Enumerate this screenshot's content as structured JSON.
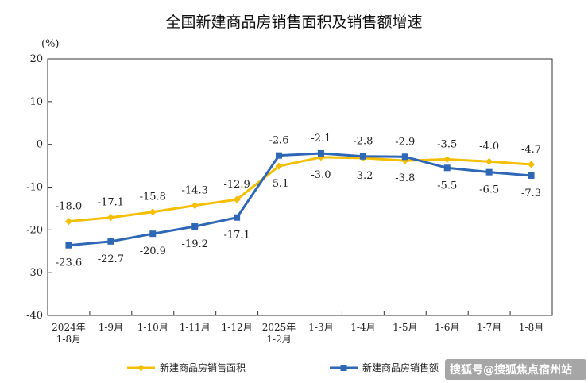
{
  "chart_data": {
    "type": "line",
    "title": "全国新建商品房销售面积及销售额增速",
    "unit": "(%)",
    "ylim": [
      -40,
      20
    ],
    "yticks": [
      "20",
      "10",
      "0",
      "-10",
      "-20",
      "-30",
      "-40"
    ],
    "yticks_values": [
      20,
      10,
      0,
      -10,
      -20,
      -30,
      -40
    ],
    "categories": [
      [
        "2024年",
        "1-8月"
      ],
      [
        "1-9月"
      ],
      [
        "1-10月"
      ],
      [
        "1-11月"
      ],
      [
        "1-12月"
      ],
      [
        "2025年",
        "1-2月"
      ],
      [
        "1-3月"
      ],
      [
        "1-4月"
      ],
      [
        "1-5月"
      ],
      [
        "1-6月"
      ],
      [
        "1-7月"
      ],
      [
        "1-8月"
      ]
    ],
    "series": [
      {
        "name": "新建商品房销售面积",
        "color": "#F5BE00",
        "values": [
          -18.0,
          -17.1,
          -15.8,
          -14.3,
          -12.9,
          -5.1,
          -3.0,
          -3.2,
          -3.8,
          -3.5,
          -4.0,
          -4.7
        ],
        "labels": [
          "-18.0",
          "-17.1",
          "-15.8",
          "-14.3",
          "-12.9",
          "-5.1",
          "-3.0",
          "-3.2",
          "-3.8",
          "-3.5",
          "-4.0",
          "-4.7"
        ]
      },
      {
        "name": "新建商品房销售额",
        "color": "#2E67B5",
        "values": [
          -23.6,
          -22.7,
          -20.9,
          -19.2,
          -17.1,
          -2.6,
          -2.1,
          -2.8,
          -2.9,
          -5.5,
          -6.5,
          -7.3
        ],
        "labels": [
          "-23.6",
          "-22.7",
          "-20.9",
          "-19.2",
          "-17.1",
          "-2.6",
          "-2.1",
          "-2.8",
          "-2.9",
          "-5.5",
          "-6.5",
          "-7.3"
        ]
      }
    ],
    "legend_position": "bottom",
    "grid": false
  },
  "legend": {
    "area_label": "新建商品房销售面积",
    "amount_label": "新建商品房销售额"
  },
  "watermark": "搜狐号@搜狐焦点宿州站"
}
